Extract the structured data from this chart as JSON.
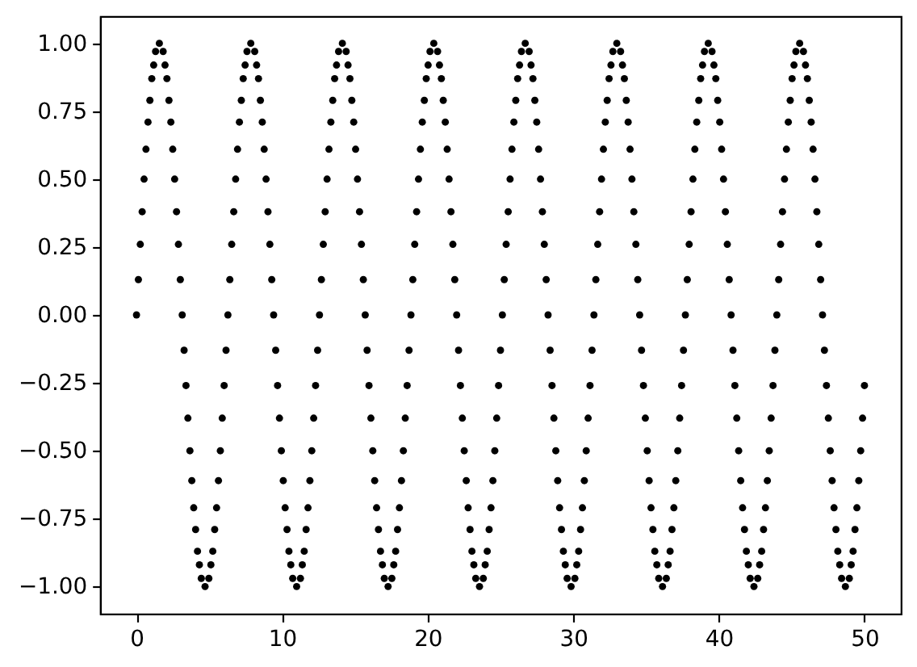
{
  "chart_data": {
    "type": "scatter",
    "color": "#000000",
    "marker": "circle",
    "x": [
      0,
      0.13,
      0.26,
      0.39,
      0.52,
      0.65,
      0.79,
      0.92,
      1.05,
      1.18,
      1.31,
      1.57,
      1.83,
      1.96,
      2.09,
      2.23,
      2.36,
      2.49,
      2.62,
      2.75,
      2.88,
      3.01,
      3.14,
      3.27,
      3.4,
      3.53,
      3.67,
      3.8,
      3.93,
      4.06,
      4.19,
      4.32,
      4.45,
      4.71,
      4.97,
      5.11,
      5.24,
      5.37,
      5.5,
      5.63,
      5.76,
      5.89,
      6.02,
      6.15,
      6.28,
      6.41,
      6.54,
      6.68,
      6.81,
      6.94,
      7.07,
      7.2,
      7.33,
      7.46,
      7.59,
      7.85,
      8.12,
      8.25,
      8.38,
      8.51,
      8.64,
      8.77,
      8.9,
      9.03,
      9.16,
      9.29,
      9.42,
      9.56,
      9.69,
      9.82,
      9.95,
      10.08,
      10.21,
      10.34,
      10.47,
      10.6,
      10.73,
      11.0,
      11.26,
      11.39,
      11.52,
      11.65,
      11.78,
      11.91,
      12.04,
      12.17,
      12.3,
      12.44,
      12.57,
      12.7,
      12.83,
      12.96,
      13.09,
      13.22,
      13.35,
      13.48,
      13.61,
      13.74,
      13.88,
      14.14,
      14.4,
      14.53,
      14.66,
      14.79,
      14.92,
      15.05,
      15.18,
      15.32,
      15.45,
      15.58,
      15.71,
      15.84,
      15.97,
      16.1,
      16.23,
      16.36,
      16.49,
      16.62,
      16.76,
      16.89,
      17.02,
      17.28,
      17.54,
      17.67,
      17.8,
      17.93,
      18.06,
      18.2,
      18.33,
      18.46,
      18.59,
      18.72,
      18.85,
      18.98,
      19.11,
      19.24,
      19.37,
      19.5,
      19.63,
      19.77,
      19.9,
      20.03,
      20.16,
      20.42,
      20.68,
      20.81,
      20.94,
      21.07,
      21.21,
      21.34,
      21.47,
      21.6,
      21.73,
      21.86,
      21.99,
      22.12,
      22.25,
      22.38,
      22.51,
      22.65,
      22.78,
      22.91,
      23.04,
      23.17,
      23.3,
      23.56,
      23.82,
      23.95,
      24.09,
      24.22,
      24.35,
      24.48,
      24.61,
      24.74,
      24.87,
      25.0,
      25.13,
      25.26,
      25.39,
      25.53,
      25.66,
      25.79,
      25.92,
      26.05,
      26.18,
      26.31,
      26.44,
      26.7,
      26.97,
      27.1,
      27.23,
      27.36,
      27.49,
      27.62,
      27.75,
      27.88,
      28.01,
      28.14,
      28.27,
      28.41,
      28.54,
      28.67,
      28.8,
      28.93,
      29.06,
      29.19,
      29.32,
      29.45,
      29.58,
      29.85,
      30.11,
      30.24,
      30.37,
      30.5,
      30.63,
      30.76,
      30.89,
      31.02,
      31.15,
      31.29,
      31.42,
      31.55,
      31.68,
      31.81,
      31.94,
      32.07,
      32.2,
      32.33,
      32.46,
      32.59,
      32.72,
      32.99,
      33.25,
      33.38,
      33.51,
      33.64,
      33.77,
      33.9,
      34.03,
      34.16,
      34.3,
      34.43,
      34.56,
      34.69,
      34.82,
      34.95,
      35.08,
      35.21,
      35.34,
      35.47,
      35.6,
      35.74,
      35.87,
      36.13,
      36.39,
      36.52,
      36.65,
      36.78,
      36.91,
      37.04,
      37.18,
      37.31,
      37.44,
      37.57,
      37.7,
      37.83,
      37.96,
      38.09,
      38.22,
      38.35,
      38.48,
      38.62,
      38.75,
      38.88,
      39.01,
      39.27,
      39.53,
      39.66,
      39.79,
      39.92,
      40.06,
      40.19,
      40.32,
      40.45,
      40.58,
      40.71,
      40.84,
      40.97,
      41.1,
      41.23,
      41.36,
      41.5,
      41.63,
      41.76,
      41.89,
      42.02,
      42.15,
      42.41,
      42.67,
      42.8,
      42.94,
      43.07,
      43.2,
      43.33,
      43.46,
      43.59,
      43.72,
      43.85,
      43.98,
      44.11,
      44.24,
      44.37,
      44.51,
      44.64,
      44.77,
      44.9,
      45.03,
      45.16,
      45.29,
      45.55,
      45.81,
      45.95,
      46.08,
      46.21,
      46.34,
      46.47,
      46.6,
      46.73,
      46.86,
      46.99,
      47.12,
      47.25,
      47.39,
      47.52,
      47.65,
      47.78,
      47.91,
      48.04,
      48.17,
      48.3,
      48.43,
      48.69,
      48.96,
      49.09,
      49.22,
      49.35,
      49.48,
      49.61,
      49.74,
      49.87,
      50.0
    ],
    "values": [
      0,
      0.13,
      0.26,
      0.38,
      0.5,
      0.61,
      0.71,
      0.79,
      0.87,
      0.92,
      0.97,
      1,
      0.97,
      0.92,
      0.87,
      0.79,
      0.71,
      0.61,
      0.5,
      0.38,
      0.26,
      0.13,
      0,
      -0.13,
      -0.26,
      -0.38,
      -0.5,
      -0.61,
      -0.71,
      -0.79,
      -0.87,
      -0.92,
      -0.97,
      -1,
      -0.97,
      -0.92,
      -0.87,
      -0.79,
      -0.71,
      -0.61,
      -0.5,
      -0.38,
      -0.26,
      -0.13,
      0,
      0.13,
      0.26,
      0.38,
      0.5,
      0.61,
      0.71,
      0.79,
      0.87,
      0.92,
      0.97,
      1,
      0.97,
      0.92,
      0.87,
      0.79,
      0.71,
      0.61,
      0.5,
      0.38,
      0.26,
      0.13,
      0,
      -0.13,
      -0.26,
      -0.38,
      -0.5,
      -0.61,
      -0.71,
      -0.79,
      -0.87,
      -0.92,
      -0.97,
      -1,
      -0.97,
      -0.92,
      -0.87,
      -0.79,
      -0.71,
      -0.61,
      -0.5,
      -0.38,
      -0.26,
      -0.13,
      0,
      0.13,
      0.26,
      0.38,
      0.5,
      0.61,
      0.71,
      0.79,
      0.87,
      0.92,
      0.97,
      1,
      0.97,
      0.92,
      0.87,
      0.79,
      0.71,
      0.61,
      0.5,
      0.38,
      0.26,
      0.13,
      0,
      -0.13,
      -0.26,
      -0.38,
      -0.5,
      -0.61,
      -0.71,
      -0.79,
      -0.87,
      -0.92,
      -0.97,
      -1,
      -0.97,
      -0.92,
      -0.87,
      -0.79,
      -0.71,
      -0.61,
      -0.5,
      -0.38,
      -0.26,
      -0.13,
      0,
      0.13,
      0.26,
      0.38,
      0.5,
      0.61,
      0.71,
      0.79,
      0.87,
      0.92,
      0.97,
      1,
      0.97,
      0.92,
      0.87,
      0.79,
      0.71,
      0.61,
      0.5,
      0.38,
      0.26,
      0.13,
      0,
      -0.13,
      -0.26,
      -0.38,
      -0.5,
      -0.61,
      -0.71,
      -0.79,
      -0.87,
      -0.92,
      -0.97,
      -1,
      -0.97,
      -0.92,
      -0.87,
      -0.79,
      -0.71,
      -0.61,
      -0.5,
      -0.38,
      -0.26,
      -0.13,
      0,
      0.13,
      0.26,
      0.38,
      0.5,
      0.61,
      0.71,
      0.79,
      0.87,
      0.92,
      0.97,
      1,
      0.97,
      0.92,
      0.87,
      0.79,
      0.71,
      0.61,
      0.5,
      0.38,
      0.26,
      0.13,
      0,
      -0.13,
      -0.26,
      -0.38,
      -0.5,
      -0.61,
      -0.71,
      -0.79,
      -0.87,
      -0.92,
      -0.97,
      -1,
      -0.97,
      -0.92,
      -0.87,
      -0.79,
      -0.71,
      -0.61,
      -0.5,
      -0.38,
      -0.26,
      -0.13,
      0,
      0.13,
      0.26,
      0.38,
      0.5,
      0.61,
      0.71,
      0.79,
      0.87,
      0.92,
      0.97,
      1,
      0.97,
      0.92,
      0.87,
      0.79,
      0.71,
      0.61,
      0.5,
      0.38,
      0.26,
      0.13,
      0,
      -0.13,
      -0.26,
      -0.38,
      -0.5,
      -0.61,
      -0.71,
      -0.79,
      -0.87,
      -0.92,
      -0.97,
      -1,
      -0.97,
      -0.92,
      -0.87,
      -0.79,
      -0.71,
      -0.61,
      -0.5,
      -0.38,
      -0.26,
      -0.13,
      0,
      0.13,
      0.26,
      0.38,
      0.5,
      0.61,
      0.71,
      0.79,
      0.87,
      0.92,
      0.97,
      1,
      0.97,
      0.92,
      0.87,
      0.79,
      0.71,
      0.61,
      0.5,
      0.38,
      0.26,
      0.13,
      0,
      -0.13,
      -0.26,
      -0.38,
      -0.5,
      -0.61,
      -0.71,
      -0.79,
      -0.87,
      -0.92,
      -0.97,
      -1,
      -0.97,
      -0.92,
      -0.87,
      -0.79,
      -0.71,
      -0.61,
      -0.5,
      -0.38,
      -0.26,
      -0.13,
      0,
      0.13,
      0.26,
      0.38,
      0.5,
      0.61,
      0.71,
      0.79,
      0.87,
      0.92,
      0.97,
      1,
      0.97,
      0.92,
      0.87,
      0.79,
      0.71,
      0.61,
      0.5,
      0.38,
      0.26,
      0.13,
      0,
      -0.13,
      -0.26,
      -0.38,
      -0.5,
      -0.61,
      -0.71,
      -0.79,
      -0.87,
      -0.92,
      -0.97,
      -1,
      -0.97,
      -0.92,
      -0.87,
      -0.79,
      -0.71,
      -0.61,
      -0.5,
      -0.38,
      -0.26
    ],
    "xlim": [
      -2.5,
      52.5
    ],
    "xticks": [
      0,
      10,
      20,
      30,
      40,
      50
    ],
    "ylim": [
      -1.1,
      1.1
    ],
    "yticks": [
      {
        "value": -1,
        "label": "−1.00"
      },
      {
        "value": -0.75,
        "label": "−0.75"
      },
      {
        "value": -0.5,
        "label": "−0.50"
      },
      {
        "value": -0.25,
        "label": "−0.25"
      },
      {
        "value": 0,
        "label": "0.00"
      },
      {
        "value": 0.25,
        "label": "0.25"
      },
      {
        "value": 0.5,
        "label": "0.50"
      },
      {
        "value": 0.75,
        "label": "0.75"
      },
      {
        "value": 1,
        "label": "1.00"
      }
    ]
  }
}
